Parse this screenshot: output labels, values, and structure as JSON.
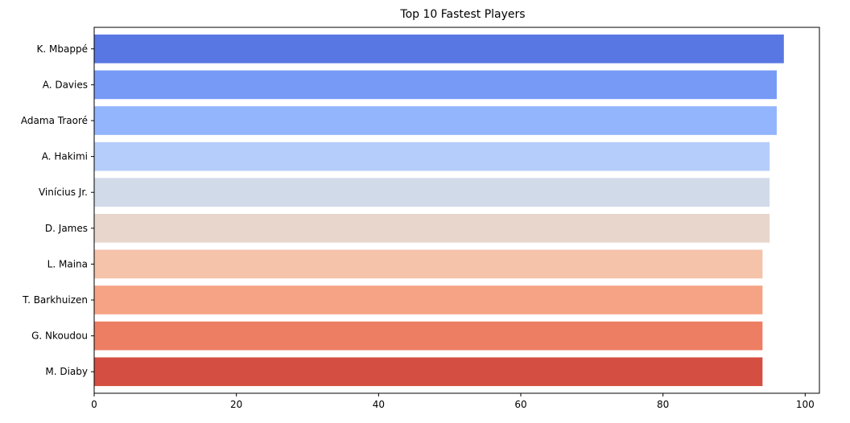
{
  "chart_data": {
    "type": "bar",
    "orientation": "horizontal",
    "title": "Top 10 Fastest Players",
    "xlabel": "",
    "ylabel": "",
    "categories": [
      "K. Mbappé",
      "A. Davies",
      "Adama Traoré",
      "A. Hakimi",
      "Vinícius Jr.",
      "D. James",
      "L. Maina",
      "T. Barkhuizen",
      "G. Nkoudou",
      "M. Diaby"
    ],
    "values": [
      97,
      96,
      96,
      95,
      95,
      95,
      94,
      94,
      94,
      94
    ],
    "colors": [
      "#5977e3",
      "#779af7",
      "#93b5fe",
      "#b5cdfa",
      "#d1dae9",
      "#e8d6cc",
      "#f5c2aa",
      "#f6a385",
      "#ed7e63",
      "#d44e41"
    ],
    "xlim": [
      0,
      102
    ],
    "xticks": [
      0,
      20,
      40,
      60,
      80,
      100
    ],
    "xtick_labels": [
      "0",
      "20",
      "40",
      "60",
      "80",
      "100"
    ],
    "grid": false,
    "legend": "none"
  }
}
